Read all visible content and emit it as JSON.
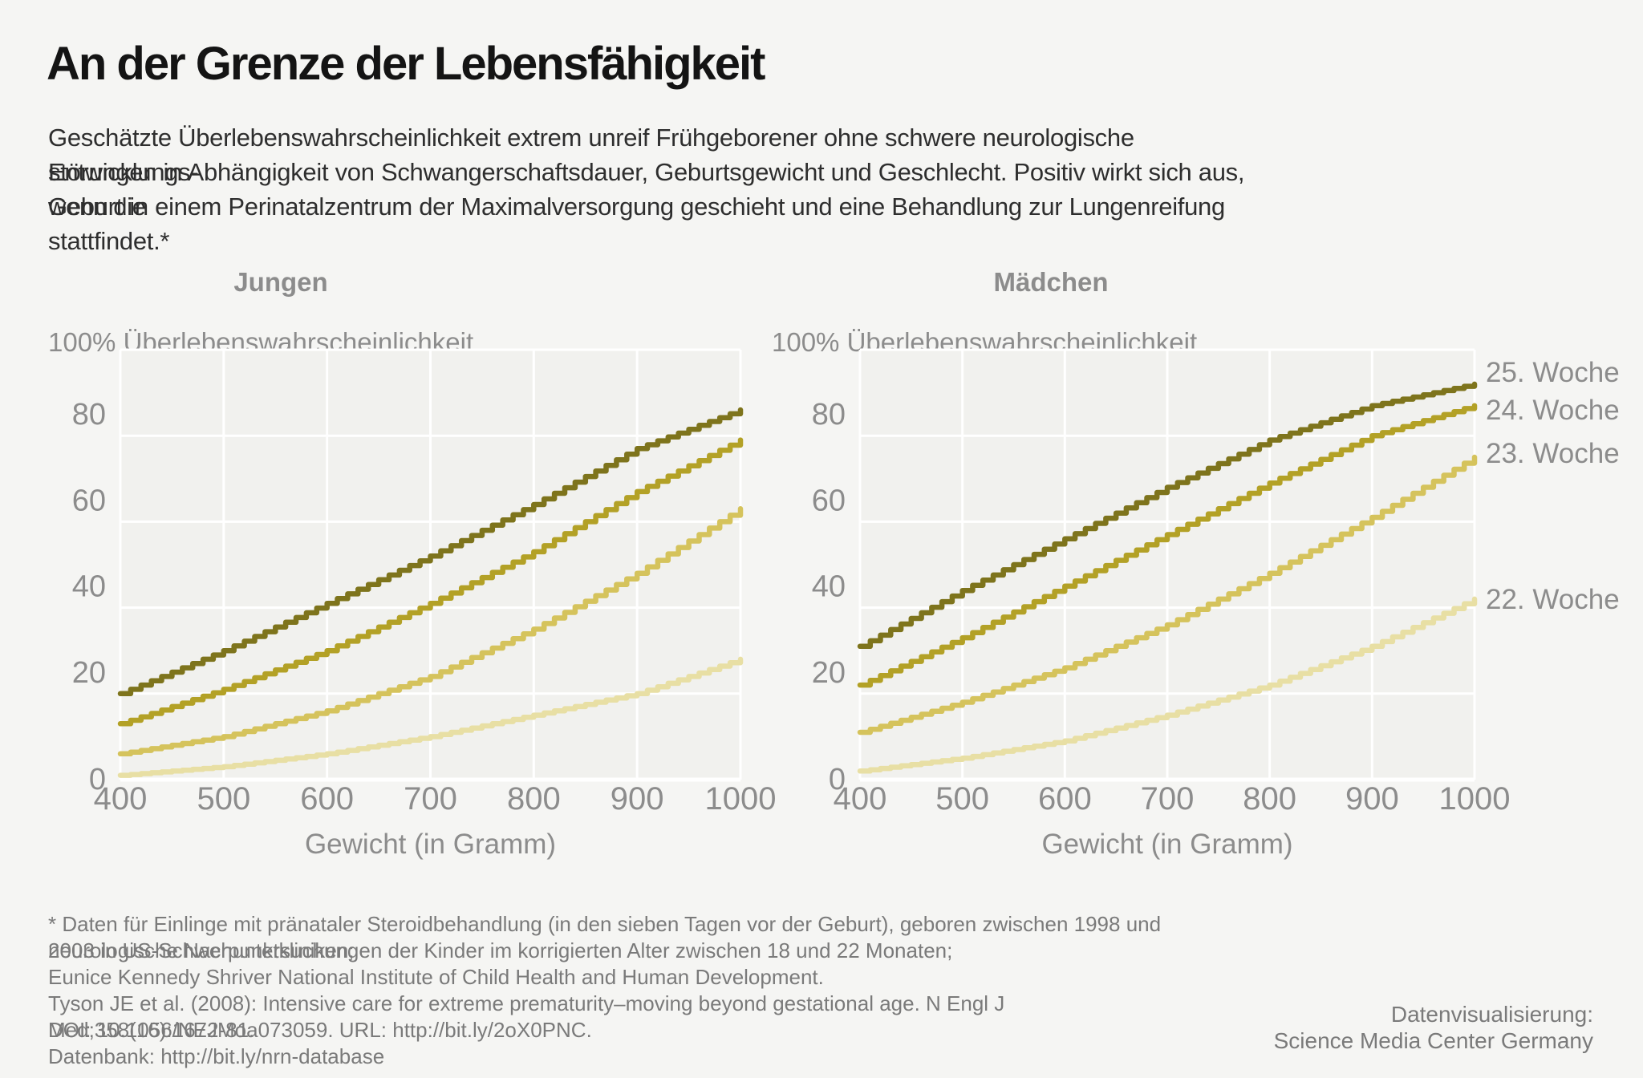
{
  "page": {
    "title": "An der Grenze der Lebensfähigkeit",
    "subtitle_lines": [
      "Geschätzte Überlebenswahrscheinlichkeit extrem unreif Frühgeborener ohne schwere neurologische Entwicklungs-",
      "störungen in Abhängigkeit von Schwangerschaftsdauer, Geburtsgewicht und Geschlecht. Positiv wirkt sich aus, wenn die",
      "Geburt in einem Perinatalzentrum der Maximalversorgung geschieht und eine Behandlung zur Lungenreifung stattfindet.*"
    ],
    "footnote_lines": [
      "* Daten für Einlinge mit pränataler Steroidbehandlung (in den sieben Tagen vor der Geburt), geboren zwischen 1998 und 2003 in US-Schwerpunktkliniken;",
      "neurologische Nachuntersuchungen der Kinder im korrigierten Alter zwischen 18 und 22 Monaten;",
      "Eunice Kennedy Shriver National Institute of Child Health and Human Development.",
      "Tyson JE et al. (2008): Intensive care for extreme prematurity–moving beyond gestational age. N Engl J Med;358(16):1672-81.",
      "DOI: 10.1056/NEJMoa073059. URL: http://bit.ly/2oX0PNC.",
      "Datenbank: http://bit.ly/nrn-database"
    ],
    "credit_lines": [
      "Datenvisualisierung:",
      "Science Media Center Germany"
    ]
  },
  "chart_data": {
    "type": "line",
    "step_interpolation": true,
    "x": [
      400,
      500,
      600,
      700,
      800,
      900,
      1000
    ],
    "xlabel": "Gewicht (in Gramm)",
    "ylabel": "100% Überlebenswahrscheinlichkeit",
    "xlim": [
      400,
      1000
    ],
    "ylim": [
      0,
      100
    ],
    "xticks": [
      400,
      500,
      600,
      700,
      800,
      900,
      1000
    ],
    "yticks": [
      0,
      20,
      40,
      60,
      80
    ],
    "grid": true,
    "legend_position": "right-of-second-panel",
    "series_labels": [
      "25. Woche",
      "24. Woche",
      "23. Woche",
      "22. Woche"
    ],
    "colors": {
      "week25": "#7e741c",
      "week24": "#b3a126",
      "week23": "#d5c35c",
      "week22": "#e8dfa4",
      "grid": "#ffffff",
      "plot_background": "#f1f1ee",
      "page_background": "#f5f5f3",
      "axis_text": "#8c8c8c"
    },
    "panels": [
      {
        "title": "Jungen",
        "series": [
          {
            "name": "25. Woche",
            "color": "#7e741c",
            "values": [
              20,
              30,
              41,
              52,
              64,
              77,
              86
            ]
          },
          {
            "name": "24. Woche",
            "color": "#b3a126",
            "values": [
              13,
              21,
              30,
              41,
              53,
              67,
              79
            ]
          },
          {
            "name": "23. Woche",
            "color": "#d5c35c",
            "values": [
              6,
              10,
              16,
              24,
              35,
              48,
              63
            ]
          },
          {
            "name": "22. Woche",
            "color": "#e8dfa4",
            "values": [
              1,
              3,
              6,
              10,
              15,
              20,
              28
            ]
          }
        ]
      },
      {
        "title": "Mädchen",
        "series": [
          {
            "name": "25. Woche",
            "color": "#7e741c",
            "values": [
              31,
              44,
              56,
              68,
              79,
              87,
              92
            ]
          },
          {
            "name": "24. Woche",
            "color": "#b3a126",
            "values": [
              22,
              33,
              45,
              57,
              69,
              80,
              87
            ]
          },
          {
            "name": "23. Woche",
            "color": "#d5c35c",
            "values": [
              11,
              18,
              26,
              36,
              48,
              61,
              75
            ]
          },
          {
            "name": "22. Woche",
            "color": "#e8dfa4",
            "values": [
              2,
              5,
              9,
              15,
              22,
              31,
              42
            ]
          }
        ]
      }
    ]
  }
}
